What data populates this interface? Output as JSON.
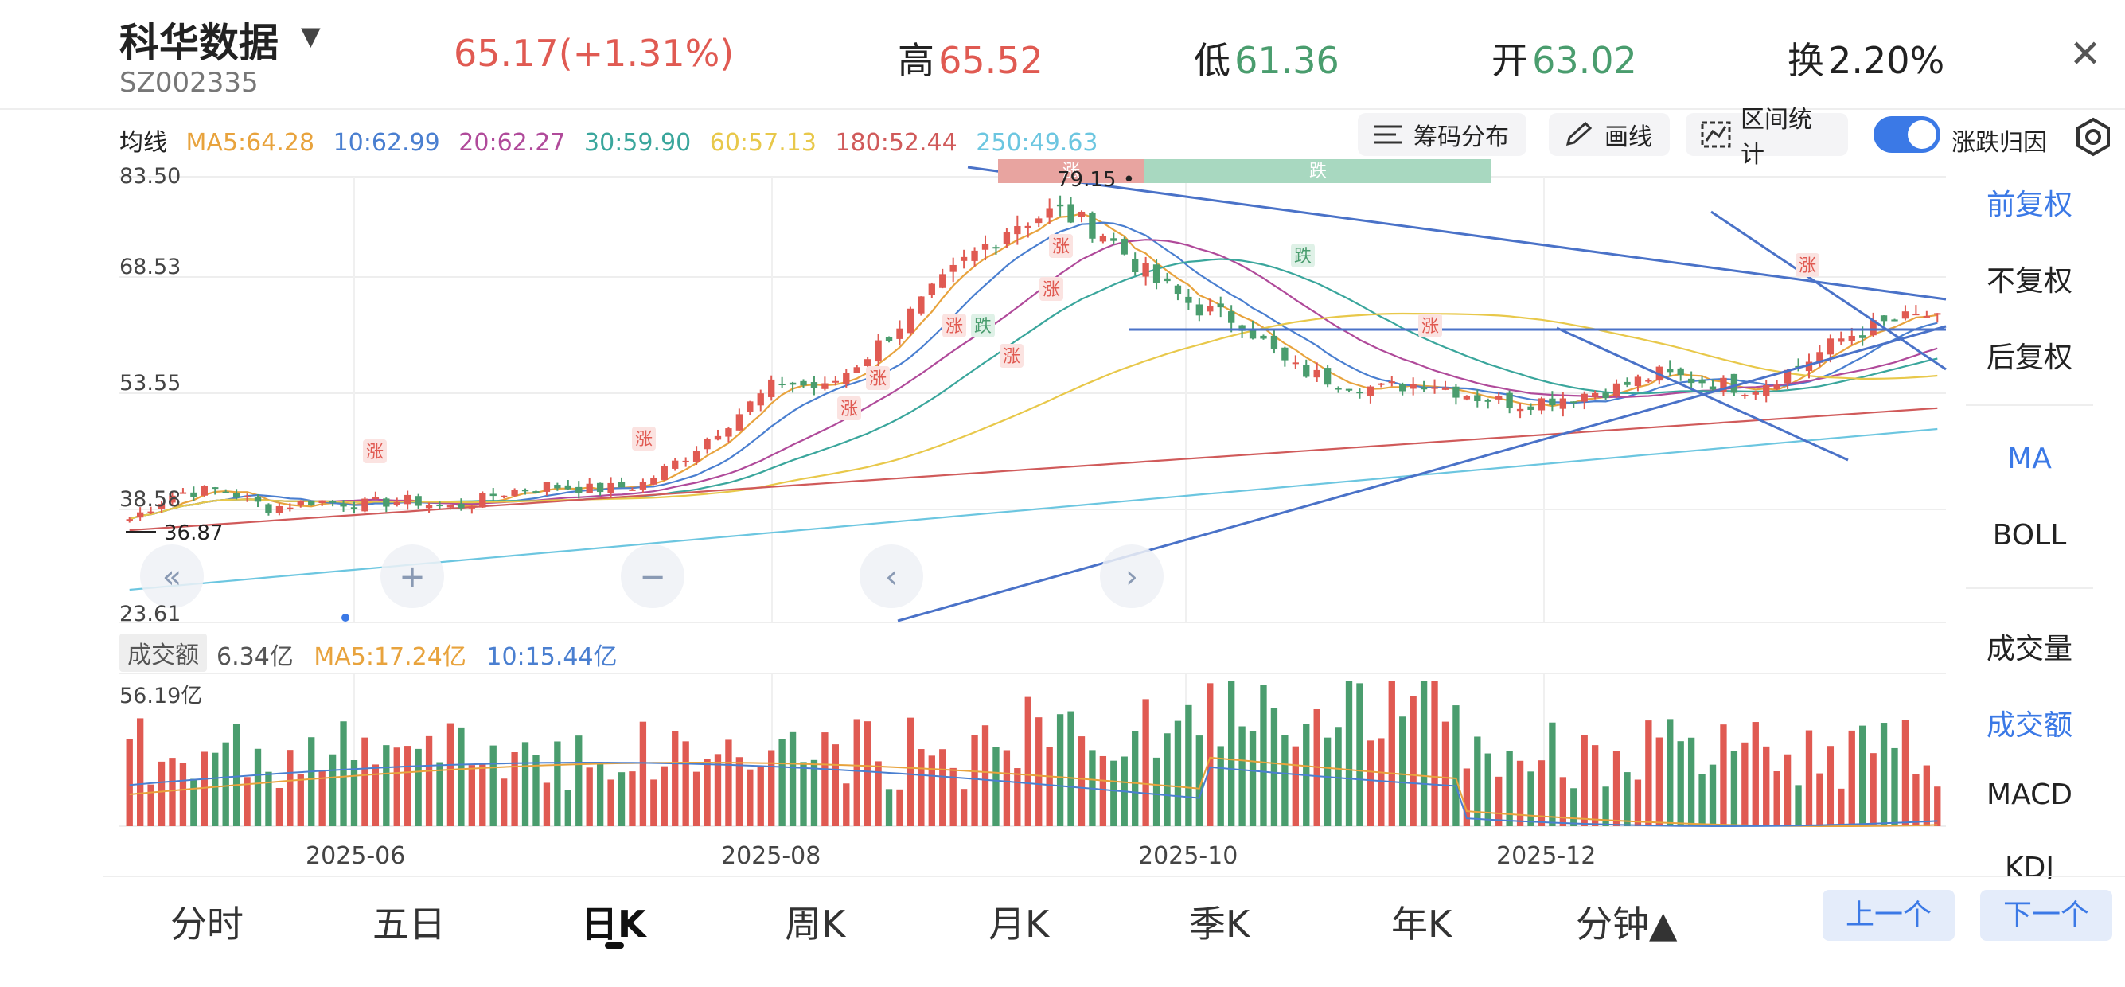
{
  "header": {
    "stock_name": "科华数据",
    "stock_code": "SZ002335",
    "price_change": "65.17(+1.31%)",
    "high_label": "高",
    "high_value": "65.52",
    "low_label": "低",
    "low_value": "61.36",
    "open_label": "开",
    "open_value": "63.02",
    "turnover_label": "换",
    "turnover_value": "2.20%"
  },
  "ma_row": {
    "label": "均线",
    "ma5": "MA5:64.28",
    "ma10": "10:62.99",
    "ma20": "20:62.27",
    "ma30": "30:59.90",
    "ma60": "60:57.13",
    "ma180": "180:52.44",
    "ma250": "250:49.63"
  },
  "toolbar": {
    "chip_dist": "筹码分布",
    "draw_line": "画线",
    "range_stats": "区间统计",
    "toggle_label": "涨跌归因"
  },
  "colors": {
    "up": "#e05a52",
    "down": "#4a9d6e",
    "ma5": "#e8a33d",
    "ma10": "#4a7fd0",
    "ma20": "#b04a9a",
    "ma30": "#3aa69c",
    "ma60": "#e8c84a",
    "ma180": "#d05a5a",
    "ma250": "#6cc6e0",
    "accent": "#3b79e6"
  },
  "price_axis": [
    "83.50",
    "68.53",
    "53.55",
    "38.58",
    "23.61"
  ],
  "annotations": {
    "max_label": "79.15",
    "min_label": "36.87",
    "up_tag": "涨",
    "down_tag": "跌",
    "ribbon_up": "涨",
    "ribbon_down": "跌"
  },
  "volume": {
    "label": "成交额",
    "current": "6.34亿",
    "ma5": "MA5:17.24亿",
    "ma10": "10:15.44亿",
    "axis_max": "56.19亿"
  },
  "dates": [
    "2025-06",
    "2025-08",
    "2025-10",
    "2025-12"
  ],
  "sidebar": {
    "items": [
      "前复权",
      "不复权",
      "后复权",
      "MA",
      "BOLL",
      "成交量",
      "成交额",
      "MACD",
      "KDJ"
    ]
  },
  "bottom_tabs": [
    "分时",
    "五日",
    "日K",
    "周K",
    "月K",
    "季K",
    "年K",
    "分钟▲"
  ],
  "nav": {
    "prev": "上一个",
    "next": "下一个"
  },
  "chart_data": {
    "type": "candlestick",
    "y_range": [
      23.61,
      83.5
    ],
    "x_labels": [
      "2025-06",
      "2025-08",
      "2025-10",
      "2025-12"
    ],
    "close_anchors": [
      37.5,
      41,
      41.5,
      39,
      40,
      39.5,
      40,
      39,
      41,
      42,
      41.5,
      42,
      46,
      51,
      56,
      55,
      60,
      66,
      72,
      77,
      79,
      76,
      70,
      66,
      64,
      58,
      56,
      55,
      56,
      54,
      53,
      54,
      55,
      57,
      56,
      55,
      58,
      62,
      64,
      65.17
    ],
    "volume_max": 56.19
  }
}
